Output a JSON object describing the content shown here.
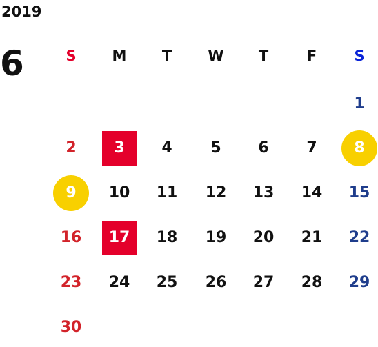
{
  "year": "2019",
  "month": "6",
  "weekdays": [
    {
      "label": "S",
      "color": "#e4002b"
    },
    {
      "label": "M",
      "color": "#111111"
    },
    {
      "label": "T",
      "color": "#111111"
    },
    {
      "label": "W",
      "color": "#111111"
    },
    {
      "label": "T",
      "color": "#111111"
    },
    {
      "label": "F",
      "color": "#111111"
    },
    {
      "label": "S",
      "color": "#0a24d8"
    }
  ],
  "colors": {
    "sunday_text": "#d2232a",
    "saturday_text": "#1f3d8c",
    "weekday_text": "#111111",
    "highlight_square": "#e4002b",
    "highlight_circle": "#f8d000",
    "highlight_text": "#ffffff"
  },
  "weeks": [
    [
      null,
      null,
      null,
      null,
      null,
      null,
      {
        "day": "1"
      }
    ],
    [
      {
        "day": "2"
      },
      {
        "day": "3",
        "mark": "square"
      },
      {
        "day": "4"
      },
      {
        "day": "5"
      },
      {
        "day": "6"
      },
      {
        "day": "7"
      },
      {
        "day": "8",
        "mark": "circle"
      }
    ],
    [
      {
        "day": "9",
        "mark": "circle"
      },
      {
        "day": "10"
      },
      {
        "day": "11"
      },
      {
        "day": "12"
      },
      {
        "day": "13"
      },
      {
        "day": "14"
      },
      {
        "day": "15"
      }
    ],
    [
      {
        "day": "16"
      },
      {
        "day": "17",
        "mark": "square"
      },
      {
        "day": "18"
      },
      {
        "day": "19"
      },
      {
        "day": "20"
      },
      {
        "day": "21"
      },
      {
        "day": "22"
      }
    ],
    [
      {
        "day": "23"
      },
      {
        "day": "24"
      },
      {
        "day": "25"
      },
      {
        "day": "26"
      },
      {
        "day": "27"
      },
      {
        "day": "28"
      },
      {
        "day": "29"
      }
    ],
    [
      {
        "day": "30"
      },
      null,
      null,
      null,
      null,
      null,
      null
    ]
  ]
}
